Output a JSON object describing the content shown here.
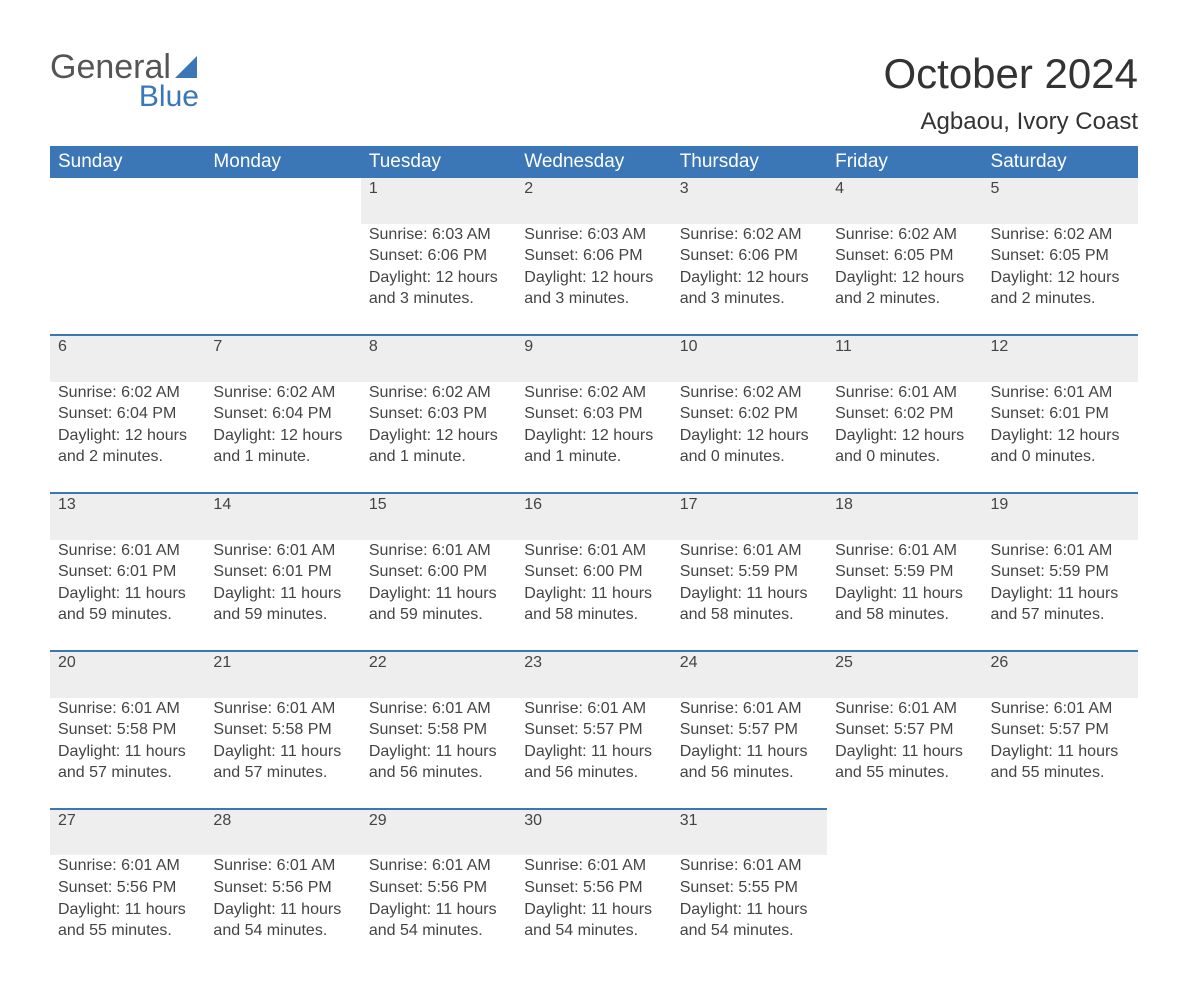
{
  "logo": {
    "text1": "General",
    "text2": "Blue",
    "accent_color": "#3b76b6"
  },
  "title": "October 2024",
  "location": "Agbaou, Ivory Coast",
  "colors": {
    "header_bg": "#3b76b6",
    "header_text": "#ffffff",
    "daynum_bg": "#eeeeee",
    "row_border": "#3b76b6",
    "body_text": "#444444",
    "background": "#ffffff"
  },
  "weekdays": [
    "Sunday",
    "Monday",
    "Tuesday",
    "Wednesday",
    "Thursday",
    "Friday",
    "Saturday"
  ],
  "weeks": [
    [
      null,
      null,
      {
        "n": "1",
        "sunrise": "Sunrise: 6:03 AM",
        "sunset": "Sunset: 6:06 PM",
        "day1": "Daylight: 12 hours",
        "day2": "and 3 minutes."
      },
      {
        "n": "2",
        "sunrise": "Sunrise: 6:03 AM",
        "sunset": "Sunset: 6:06 PM",
        "day1": "Daylight: 12 hours",
        "day2": "and 3 minutes."
      },
      {
        "n": "3",
        "sunrise": "Sunrise: 6:02 AM",
        "sunset": "Sunset: 6:06 PM",
        "day1": "Daylight: 12 hours",
        "day2": "and 3 minutes."
      },
      {
        "n": "4",
        "sunrise": "Sunrise: 6:02 AM",
        "sunset": "Sunset: 6:05 PM",
        "day1": "Daylight: 12 hours",
        "day2": "and 2 minutes."
      },
      {
        "n": "5",
        "sunrise": "Sunrise: 6:02 AM",
        "sunset": "Sunset: 6:05 PM",
        "day1": "Daylight: 12 hours",
        "day2": "and 2 minutes."
      }
    ],
    [
      {
        "n": "6",
        "sunrise": "Sunrise: 6:02 AM",
        "sunset": "Sunset: 6:04 PM",
        "day1": "Daylight: 12 hours",
        "day2": "and 2 minutes."
      },
      {
        "n": "7",
        "sunrise": "Sunrise: 6:02 AM",
        "sunset": "Sunset: 6:04 PM",
        "day1": "Daylight: 12 hours",
        "day2": "and 1 minute."
      },
      {
        "n": "8",
        "sunrise": "Sunrise: 6:02 AM",
        "sunset": "Sunset: 6:03 PM",
        "day1": "Daylight: 12 hours",
        "day2": "and 1 minute."
      },
      {
        "n": "9",
        "sunrise": "Sunrise: 6:02 AM",
        "sunset": "Sunset: 6:03 PM",
        "day1": "Daylight: 12 hours",
        "day2": "and 1 minute."
      },
      {
        "n": "10",
        "sunrise": "Sunrise: 6:02 AM",
        "sunset": "Sunset: 6:02 PM",
        "day1": "Daylight: 12 hours",
        "day2": "and 0 minutes."
      },
      {
        "n": "11",
        "sunrise": "Sunrise: 6:01 AM",
        "sunset": "Sunset: 6:02 PM",
        "day1": "Daylight: 12 hours",
        "day2": "and 0 minutes."
      },
      {
        "n": "12",
        "sunrise": "Sunrise: 6:01 AM",
        "sunset": "Sunset: 6:01 PM",
        "day1": "Daylight: 12 hours",
        "day2": "and 0 minutes."
      }
    ],
    [
      {
        "n": "13",
        "sunrise": "Sunrise: 6:01 AM",
        "sunset": "Sunset: 6:01 PM",
        "day1": "Daylight: 11 hours",
        "day2": "and 59 minutes."
      },
      {
        "n": "14",
        "sunrise": "Sunrise: 6:01 AM",
        "sunset": "Sunset: 6:01 PM",
        "day1": "Daylight: 11 hours",
        "day2": "and 59 minutes."
      },
      {
        "n": "15",
        "sunrise": "Sunrise: 6:01 AM",
        "sunset": "Sunset: 6:00 PM",
        "day1": "Daylight: 11 hours",
        "day2": "and 59 minutes."
      },
      {
        "n": "16",
        "sunrise": "Sunrise: 6:01 AM",
        "sunset": "Sunset: 6:00 PM",
        "day1": "Daylight: 11 hours",
        "day2": "and 58 minutes."
      },
      {
        "n": "17",
        "sunrise": "Sunrise: 6:01 AM",
        "sunset": "Sunset: 5:59 PM",
        "day1": "Daylight: 11 hours",
        "day2": "and 58 minutes."
      },
      {
        "n": "18",
        "sunrise": "Sunrise: 6:01 AM",
        "sunset": "Sunset: 5:59 PM",
        "day1": "Daylight: 11 hours",
        "day2": "and 58 minutes."
      },
      {
        "n": "19",
        "sunrise": "Sunrise: 6:01 AM",
        "sunset": "Sunset: 5:59 PM",
        "day1": "Daylight: 11 hours",
        "day2": "and 57 minutes."
      }
    ],
    [
      {
        "n": "20",
        "sunrise": "Sunrise: 6:01 AM",
        "sunset": "Sunset: 5:58 PM",
        "day1": "Daylight: 11 hours",
        "day2": "and 57 minutes."
      },
      {
        "n": "21",
        "sunrise": "Sunrise: 6:01 AM",
        "sunset": "Sunset: 5:58 PM",
        "day1": "Daylight: 11 hours",
        "day2": "and 57 minutes."
      },
      {
        "n": "22",
        "sunrise": "Sunrise: 6:01 AM",
        "sunset": "Sunset: 5:58 PM",
        "day1": "Daylight: 11 hours",
        "day2": "and 56 minutes."
      },
      {
        "n": "23",
        "sunrise": "Sunrise: 6:01 AM",
        "sunset": "Sunset: 5:57 PM",
        "day1": "Daylight: 11 hours",
        "day2": "and 56 minutes."
      },
      {
        "n": "24",
        "sunrise": "Sunrise: 6:01 AM",
        "sunset": "Sunset: 5:57 PM",
        "day1": "Daylight: 11 hours",
        "day2": "and 56 minutes."
      },
      {
        "n": "25",
        "sunrise": "Sunrise: 6:01 AM",
        "sunset": "Sunset: 5:57 PM",
        "day1": "Daylight: 11 hours",
        "day2": "and 55 minutes."
      },
      {
        "n": "26",
        "sunrise": "Sunrise: 6:01 AM",
        "sunset": "Sunset: 5:57 PM",
        "day1": "Daylight: 11 hours",
        "day2": "and 55 minutes."
      }
    ],
    [
      {
        "n": "27",
        "sunrise": "Sunrise: 6:01 AM",
        "sunset": "Sunset: 5:56 PM",
        "day1": "Daylight: 11 hours",
        "day2": "and 55 minutes."
      },
      {
        "n": "28",
        "sunrise": "Sunrise: 6:01 AM",
        "sunset": "Sunset: 5:56 PM",
        "day1": "Daylight: 11 hours",
        "day2": "and 54 minutes."
      },
      {
        "n": "29",
        "sunrise": "Sunrise: 6:01 AM",
        "sunset": "Sunset: 5:56 PM",
        "day1": "Daylight: 11 hours",
        "day2": "and 54 minutes."
      },
      {
        "n": "30",
        "sunrise": "Sunrise: 6:01 AM",
        "sunset": "Sunset: 5:56 PM",
        "day1": "Daylight: 11 hours",
        "day2": "and 54 minutes."
      },
      {
        "n": "31",
        "sunrise": "Sunrise: 6:01 AM",
        "sunset": "Sunset: 5:55 PM",
        "day1": "Daylight: 11 hours",
        "day2": "and 54 minutes."
      },
      null,
      null
    ]
  ]
}
